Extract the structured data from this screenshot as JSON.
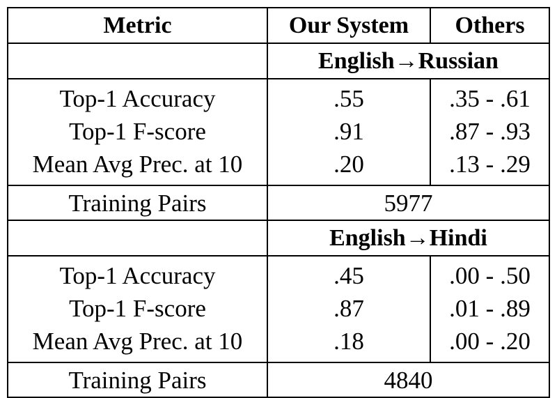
{
  "table": {
    "headers": {
      "metric": "Metric",
      "our_system": "Our System",
      "others": "Others"
    },
    "sections": [
      {
        "source": "English",
        "arrow": "→",
        "target": "Russian",
        "rows": [
          {
            "metric": "Top-1 Accuracy",
            "our_system": ".55",
            "others": ".35 - .61"
          },
          {
            "metric": "Top-1 F-score",
            "our_system": ".91",
            "others": ".87 - .93"
          },
          {
            "metric": "Mean Avg Prec. at 10",
            "our_system": ".20",
            "others": ".13 - .29"
          }
        ],
        "training_label": "Training Pairs",
        "training_value": "5977"
      },
      {
        "source": "English",
        "arrow": "→",
        "target": "Hindi",
        "rows": [
          {
            "metric": "Top-1 Accuracy",
            "our_system": ".45",
            "others": ".00 - .50"
          },
          {
            "metric": "Top-1 F-score",
            "our_system": ".87",
            "others": ".01 - .89"
          },
          {
            "metric": "Mean Avg Prec. at 10",
            "our_system": ".18",
            "others": ".00 - .20"
          }
        ],
        "training_label": "Training Pairs",
        "training_value": "4840"
      }
    ]
  }
}
